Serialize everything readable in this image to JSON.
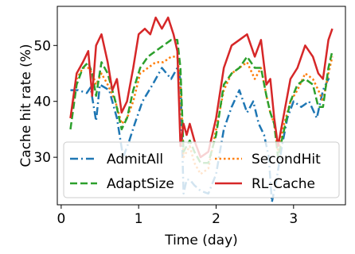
{
  "chart_data": {
    "type": "line",
    "xlabel": "Time (day)",
    "ylabel": "Cache hit rate (%)",
    "xlim": [
      -0.05,
      3.67
    ],
    "ylim": [
      21.5,
      57
    ],
    "xticks": [
      0,
      1,
      2,
      3
    ],
    "yticks": [
      30,
      40,
      50
    ],
    "grid": false,
    "legend_position": "bottom, two columns, overlapping plot",
    "series": [
      {
        "name": "AdmitAll",
        "style": "dash-dot",
        "color": "#1f77b4",
        "x": [
          0.12,
          0.22,
          0.33,
          0.38,
          0.45,
          0.5,
          0.62,
          0.72,
          0.8,
          0.88,
          0.95,
          1.05,
          1.18,
          1.3,
          1.42,
          1.5,
          1.54,
          1.58,
          1.62,
          1.66,
          1.72,
          1.8,
          1.9,
          2.0,
          2.1,
          2.2,
          2.3,
          2.4,
          2.48,
          2.55,
          2.62,
          2.68,
          2.72,
          2.78,
          2.85,
          2.92,
          3.0,
          3.1,
          3.2,
          3.3,
          3.38,
          3.45,
          3.5
        ],
        "y": [
          42,
          42,
          41.5,
          42.5,
          36.5,
          43,
          42,
          37,
          30,
          33,
          36,
          40,
          43,
          46,
          44,
          46,
          44,
          23.5,
          26,
          26,
          25,
          24,
          23.5,
          27,
          35,
          39,
          42,
          38,
          40,
          36,
          34,
          30,
          22,
          26,
          32,
          37,
          40,
          39,
          40,
          37,
          42,
          44,
          44
        ]
      },
      {
        "name": "SecondHit",
        "style": "dotted",
        "color": "#ff7f0e",
        "x": [
          0.12,
          0.2,
          0.28,
          0.35,
          0.4,
          0.45,
          0.52,
          0.6,
          0.7,
          0.78,
          0.85,
          0.93,
          1.02,
          1.12,
          1.22,
          1.32,
          1.42,
          1.5,
          1.54,
          1.58,
          1.62,
          1.66,
          1.72,
          1.8,
          1.9,
          2.0,
          2.1,
          2.2,
          2.3,
          2.4,
          2.5,
          2.58,
          2.65,
          2.7,
          2.75,
          2.8,
          2.88,
          2.96,
          3.05,
          3.15,
          3.25,
          3.32,
          3.38,
          3.45,
          3.5
        ],
        "y": [
          37,
          44,
          46,
          46,
          45,
          43,
          45,
          43,
          40,
          36,
          37,
          40,
          45,
          46,
          47,
          47,
          48,
          48,
          43,
          30,
          31,
          32,
          29,
          27,
          28,
          35,
          42,
          45,
          46,
          47,
          44,
          46,
          41,
          38,
          36,
          31,
          36,
          40,
          42,
          45,
          44,
          42,
          40,
          45,
          48
        ]
      },
      {
        "name": "AdaptSize",
        "style": "dashed",
        "color": "#2ca02c",
        "x": [
          0.12,
          0.2,
          0.28,
          0.35,
          0.4,
          0.45,
          0.52,
          0.6,
          0.7,
          0.78,
          0.85,
          0.93,
          1.02,
          1.12,
          1.22,
          1.32,
          1.42,
          1.5,
          1.54,
          1.58,
          1.62,
          1.66,
          1.72,
          1.8,
          1.9,
          2.0,
          2.1,
          2.2,
          2.3,
          2.4,
          2.5,
          2.58,
          2.65,
          2.7,
          2.75,
          2.8,
          2.88,
          2.96,
          3.05,
          3.15,
          3.25,
          3.32,
          3.38,
          3.45,
          3.5
        ],
        "y": [
          35,
          43,
          46,
          47,
          45,
          41,
          47,
          45,
          40,
          35,
          37,
          42,
          46,
          48,
          49,
          50,
          51,
          51,
          46,
          31,
          32,
          33,
          31,
          29,
          29,
          34,
          43,
          45,
          46,
          48,
          46,
          46,
          41,
          38,
          36,
          30,
          35,
          40,
          43,
          44,
          43,
          39,
          39,
          46,
          49
        ]
      },
      {
        "name": "RL-Cache",
        "style": "solid",
        "color": "#d62728",
        "x": [
          0.12,
          0.2,
          0.28,
          0.35,
          0.4,
          0.45,
          0.52,
          0.6,
          0.66,
          0.72,
          0.78,
          0.85,
          0.93,
          1.0,
          1.08,
          1.15,
          1.22,
          1.3,
          1.38,
          1.45,
          1.5,
          1.54,
          1.58,
          1.62,
          1.66,
          1.72,
          1.8,
          1.9,
          2.0,
          2.1,
          2.2,
          2.3,
          2.4,
          2.5,
          2.58,
          2.65,
          2.7,
          2.75,
          2.8,
          2.88,
          2.96,
          3.05,
          3.15,
          3.25,
          3.32,
          3.38,
          3.45,
          3.5
        ],
        "y": [
          37,
          45,
          47,
          49,
          41,
          50,
          52,
          47,
          42,
          44,
          38,
          40,
          46,
          52,
          53,
          52,
          55,
          53,
          55,
          52,
          49,
          32,
          36,
          34,
          36,
          33,
          30,
          31,
          37,
          46,
          50,
          51,
          52,
          48,
          51,
          43,
          44,
          37,
          32,
          38,
          44,
          46,
          50,
          48,
          45,
          44,
          51,
          53
        ]
      }
    ]
  }
}
